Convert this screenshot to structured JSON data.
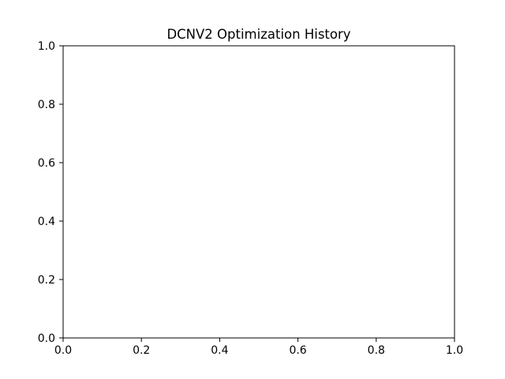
{
  "chart_data": {
    "type": "line",
    "title": "DCNV2 Optimization History",
    "xlabel": "",
    "ylabel": "",
    "xlim": [
      0.0,
      1.0
    ],
    "ylim": [
      0.0,
      1.0
    ],
    "x_ticks": [
      0.0,
      0.2,
      0.4,
      0.6,
      0.8,
      1.0
    ],
    "y_ticks": [
      0.0,
      0.2,
      0.4,
      0.6,
      0.8,
      1.0
    ],
    "x_tick_labels": [
      "0.0",
      "0.2",
      "0.4",
      "0.6",
      "0.8",
      "1.0"
    ],
    "y_tick_labels": [
      "0.0",
      "0.2",
      "0.4",
      "0.6",
      "0.8",
      "1.0"
    ],
    "series": [],
    "grid": false,
    "legend": "none",
    "colors": {
      "background": "#ffffff",
      "axes": "#000000",
      "text": "#000000"
    }
  }
}
